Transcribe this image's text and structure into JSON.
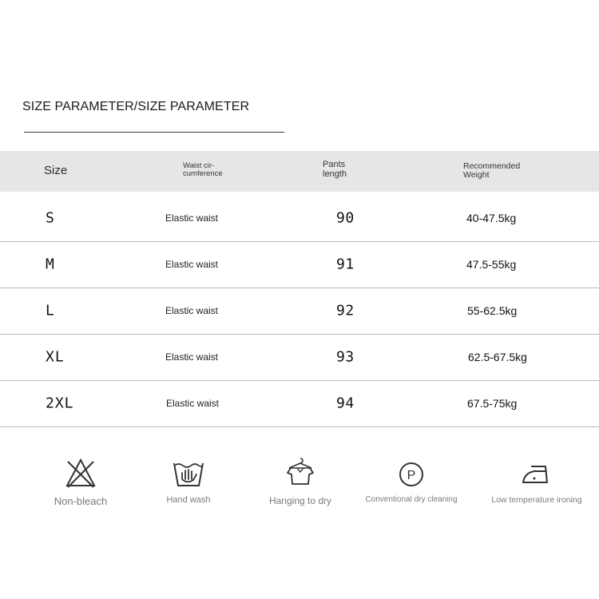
{
  "title": "SIZE PARAMETER/SIZE PARAMETER",
  "table": {
    "headers": {
      "size": "Size",
      "waist_line1": "Waist cir-",
      "waist_line2": "cumference",
      "length_line1": "Pants",
      "length_line2": "length",
      "weight_line1": "Recommended",
      "weight_line2": "Weight"
    },
    "rows": [
      {
        "size": "S",
        "waist": "Elastic waist",
        "length": "90",
        "weight": "40-47.5kg"
      },
      {
        "size": "M",
        "waist": "Elastic waist",
        "length": "91",
        "weight": "47.5-55kg"
      },
      {
        "size": "L",
        "waist": "Elastic waist",
        "length": "92",
        "weight": "55-62.5kg"
      },
      {
        "size": "XL",
        "waist": "Elastic waist",
        "length": "93",
        "weight": "62.5-67.5kg"
      },
      {
        "size": "2XL",
        "waist": "Elastic waist",
        "length": "94",
        "weight": "67.5-75kg"
      }
    ]
  },
  "care": [
    {
      "label": "Non-bleach",
      "icon": "no-bleach-icon"
    },
    {
      "label": "Hand wash",
      "icon": "hand-wash-icon"
    },
    {
      "label": "Hanging to dry",
      "icon": "hanging-dry-icon"
    },
    {
      "label": "Conventional dry cleaning",
      "icon": "dry-clean-p-icon"
    },
    {
      "label": "Low temperature ironing",
      "icon": "low-temp-iron-icon"
    }
  ]
}
